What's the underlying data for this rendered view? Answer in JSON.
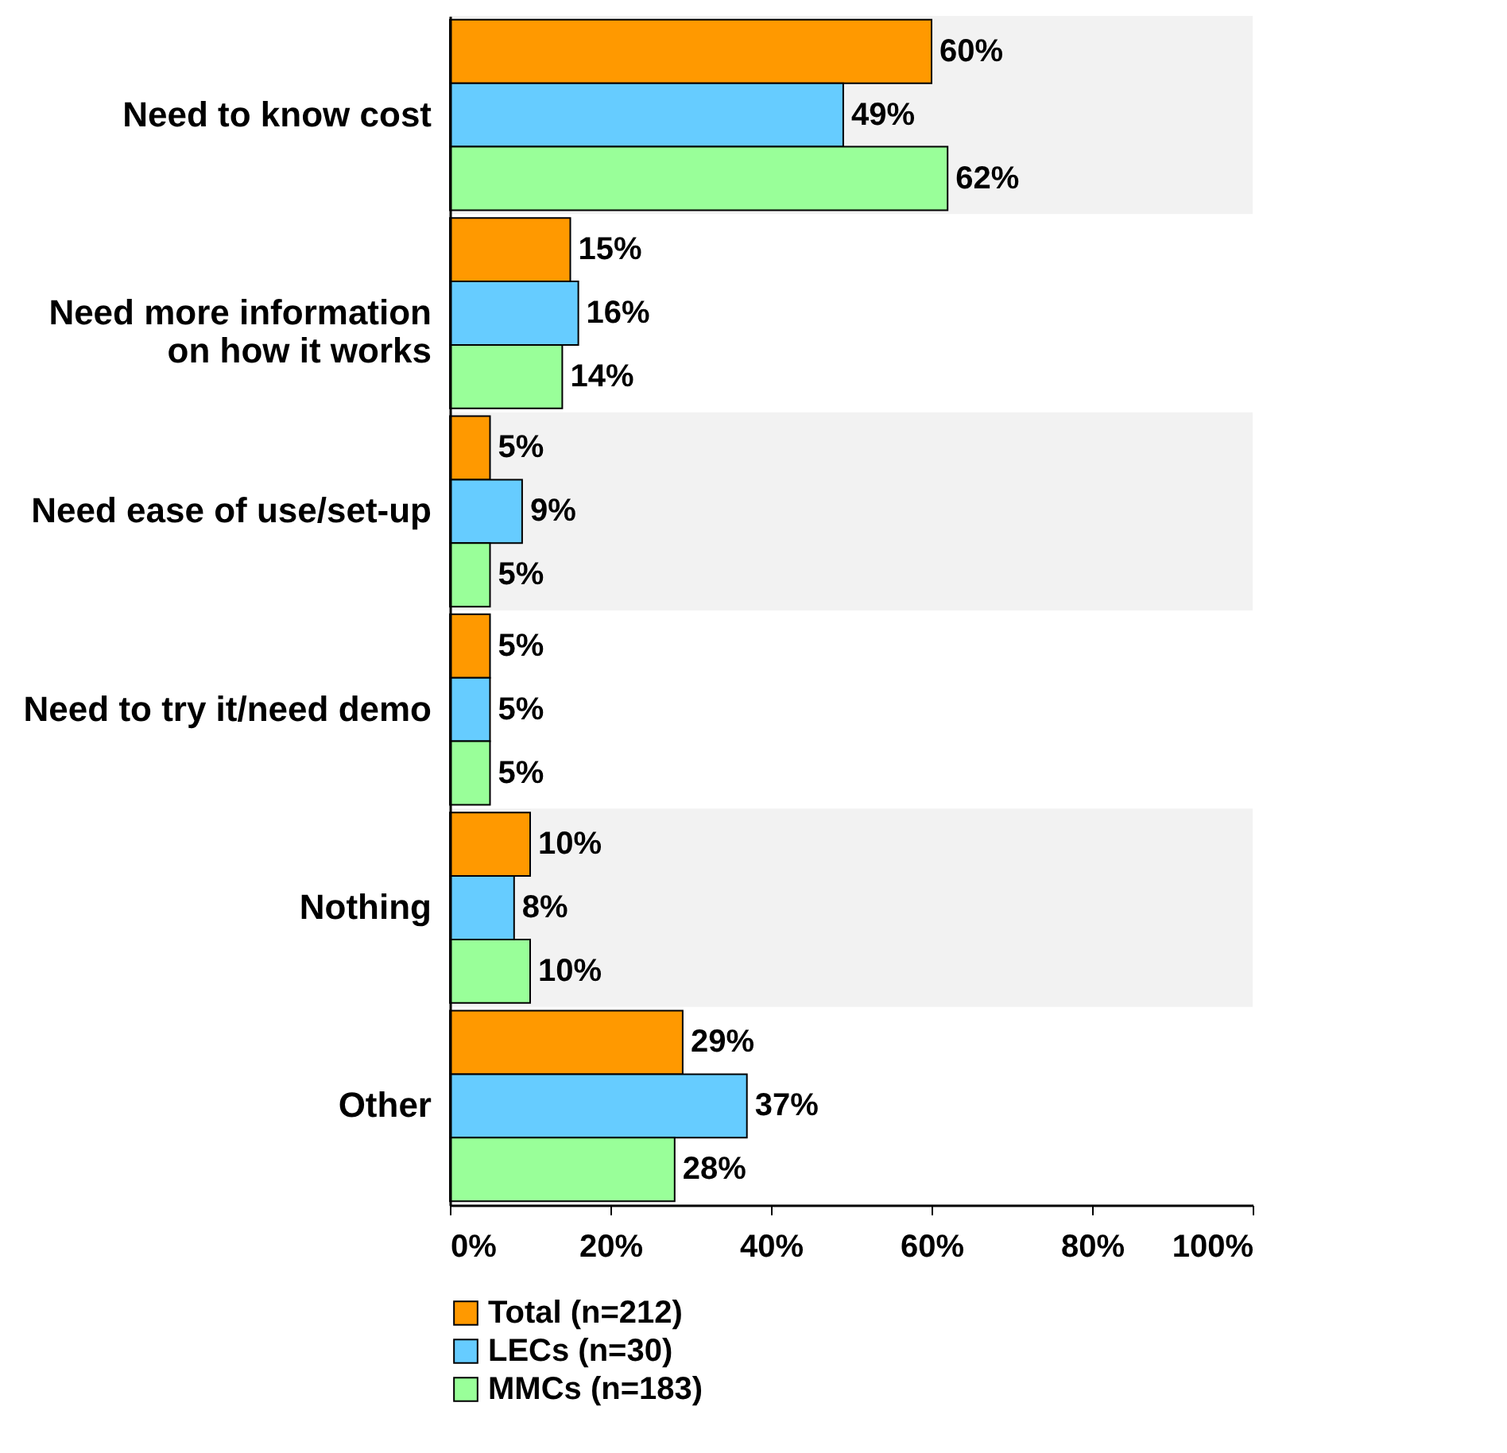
{
  "chart_data": {
    "type": "bar",
    "orientation": "horizontal",
    "categories": [
      "Need to know cost",
      "Need more information on how it works",
      "Need ease of use/set-up",
      "Need to try it/need demo",
      "Nothing",
      "Other"
    ],
    "series": [
      {
        "name": "Total (n=212)",
        "color": "#ff9900",
        "values": [
          60,
          15,
          5,
          5,
          10,
          29
        ],
        "value_labels": [
          "60%",
          "15%",
          "5%",
          "5%",
          "10%",
          "29%"
        ]
      },
      {
        "name": "LECs (n=30)",
        "color": "#66ccff",
        "values": [
          49,
          16,
          9,
          5,
          8,
          37
        ],
        "value_labels": [
          "49%",
          "16%",
          "9%",
          "5%",
          "8%",
          "37%"
        ]
      },
      {
        "name": "MMCs (n=183)",
        "color": "#99ff99",
        "values": [
          62,
          14,
          5,
          5,
          10,
          28
        ],
        "value_labels": [
          "62%",
          "14%",
          "5%",
          "5%",
          "10%",
          "28%"
        ]
      }
    ],
    "xlim": [
      0,
      100
    ],
    "xticks": [
      {
        "value": 0,
        "label": "0%"
      },
      {
        "value": 20,
        "label": "20%"
      },
      {
        "value": 40,
        "label": "40%"
      },
      {
        "value": 60,
        "label": "60%"
      },
      {
        "value": 80,
        "label": "80%"
      },
      {
        "value": 100,
        "label": "100%"
      }
    ],
    "bands": [
      {
        "axis": "y",
        "from": "Need to know cost",
        "to": "Need to know cost",
        "color": "#f2f2f2"
      },
      {
        "axis": "y",
        "from": "Need ease of use/set-up",
        "to": "Need ease of use/set-up",
        "color": "#f2f2f2"
      },
      {
        "axis": "y",
        "from": "Nothing",
        "to": "Nothing",
        "color": "#f2f2f2"
      }
    ],
    "grid": false,
    "legend": "bottom"
  }
}
